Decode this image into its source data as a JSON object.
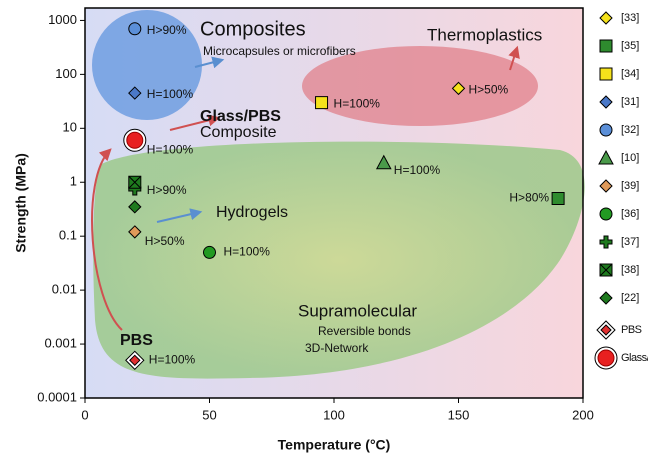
{
  "chart_data": {
    "type": "scatter",
    "x_label": "Temperature (°C)",
    "y_label": "Strength (MPa)",
    "xlim": [
      0,
      200
    ],
    "xticks": [
      0,
      50,
      100,
      150,
      200
    ],
    "ylim": [
      0.0001,
      1700
    ],
    "yticks": [
      1000,
      100,
      10,
      1,
      0.1,
      0.01,
      0.001,
      0.0001
    ],
    "log_y": true,
    "legend": "right",
    "series": [
      {
        "name": "[33]",
        "color": "#f5e21b",
        "marker": "diamond",
        "x": [
          150
        ],
        "values": [
          55
        ],
        "labels": [
          "H>50%"
        ]
      },
      {
        "name": "[35]",
        "color": "#2e8b2e",
        "marker": "square",
        "x": [
          190
        ],
        "values": [
          0.5
        ],
        "labels": [
          "H>80%"
        ]
      },
      {
        "name": "[34]",
        "color": "#f5e21b",
        "marker": "square",
        "x": [
          95
        ],
        "values": [
          30
        ],
        "labels": [
          "H=100%"
        ]
      },
      {
        "name": "[31]",
        "color": "#4a78c8",
        "marker": "diamond",
        "x": [
          20
        ],
        "values": [
          45
        ],
        "labels": [
          "H=100%"
        ]
      },
      {
        "name": "[32]",
        "color": "#5b8fd8",
        "marker": "circle",
        "x": [
          20
        ],
        "values": [
          700
        ],
        "labels": [
          "H>90%"
        ]
      },
      {
        "name": "[10]",
        "color": "#4a9a4a",
        "marker": "triangle",
        "x": [
          120
        ],
        "values": [
          2.3
        ],
        "labels": [
          "H=100%"
        ]
      },
      {
        "name": "[39]",
        "color": "#e09a5a",
        "marker": "diamond",
        "x": [
          20
        ],
        "values": [
          0.12
        ],
        "labels": [
          "H>50%"
        ]
      },
      {
        "name": "[36]",
        "color": "#229a22",
        "marker": "circle",
        "x": [
          50
        ],
        "values": [
          0.05
        ],
        "labels": [
          "H=100%"
        ]
      },
      {
        "name": "[37]",
        "color": "#1e7a1e",
        "marker": "plus",
        "x": [
          20
        ],
        "values": [
          0.75
        ],
        "labels": [
          "H>90%"
        ]
      },
      {
        "name": "[38]",
        "color": "#1e7a1e",
        "marker": "xsquare",
        "x": [
          20
        ],
        "values": [
          1.0
        ],
        "labels": [
          null
        ]
      },
      {
        "name": "[22]",
        "color": "#1e7a1e",
        "marker": "diamond",
        "x": [
          20
        ],
        "values": [
          0.35
        ],
        "labels": [
          null
        ]
      },
      {
        "name": "PBS",
        "color": "#e03030",
        "marker": "ringdiamond",
        "x": [
          20
        ],
        "values": [
          0.0005
        ],
        "labels": [
          "H=100%"
        ]
      },
      {
        "name": "Glass/PBS",
        "color": "#e82020",
        "marker": "ringcircle",
        "x": [
          20
        ],
        "values": [
          6
        ],
        "labels": [
          "H=100%"
        ]
      }
    ],
    "annotations": [
      "Composites",
      "Microcapsules or microfibers",
      "Thermoplastics",
      "Glass/PBS",
      "Composite",
      "Hydrogels",
      "Supramolecular",
      "Reversible bonds",
      "3D-Network",
      "PBS"
    ]
  }
}
